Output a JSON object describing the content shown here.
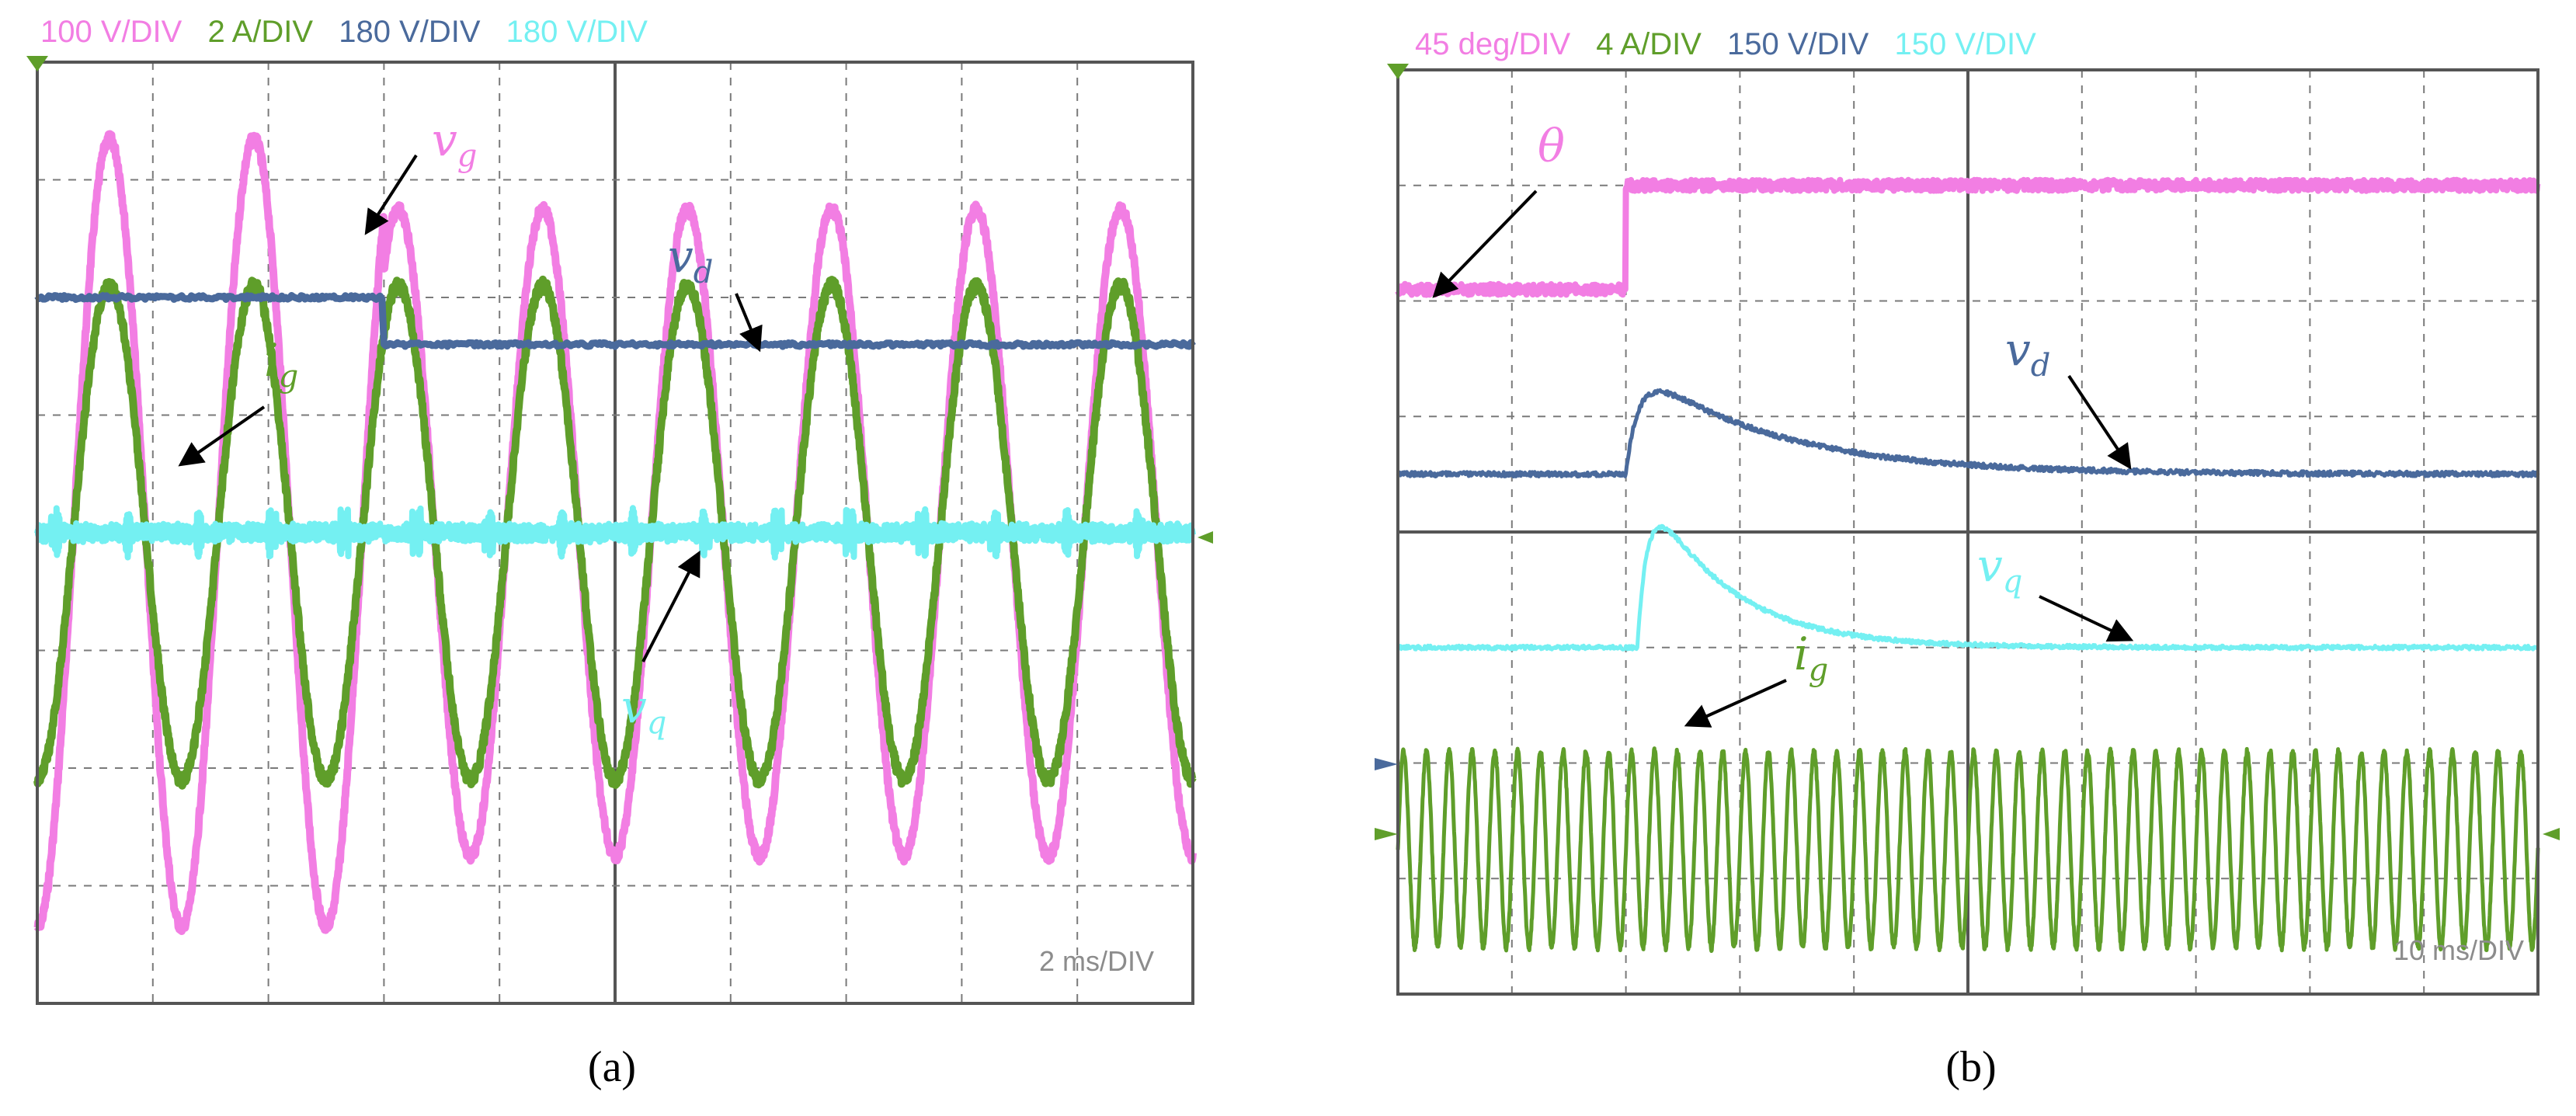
{
  "colors": {
    "pink": "#f27ee3",
    "green": "#5f9e2a",
    "blue": "#4a6a9c",
    "cyan": "#74f0f2",
    "grid": "#7a7a7a",
    "frame": "#555555",
    "timebase": "#8c8c8c"
  },
  "panels": {
    "a": {
      "label": "(a)",
      "scales": [
        "100 V/DIV",
        "2 A/DIV",
        "180 V/DIV",
        "180 V/DIV"
      ],
      "timebase": "2 ms/DIV"
    },
    "b": {
      "label": "(b)",
      "scales": [
        "45 deg/DIV",
        "4 A/DIV",
        "150 V/DIV",
        "150 V/DIV"
      ],
      "timebase": "10 ms/DIV"
    }
  },
  "chart_data": [
    {
      "type": "line",
      "panel": "(a)",
      "x_unit_per_div": "2 ms",
      "xlim": [
        0,
        20
      ],
      "grid": true,
      "series": [
        {
          "name": "v_g",
          "label": "v",
          "sub": "g",
          "scale": "100 V/DIV",
          "color": "#f27ee3",
          "kind": "sine",
          "cycles": 8,
          "amplitude_before_div": 3.35,
          "amplitude_after_div": 2.75,
          "step_ms": 6
        },
        {
          "name": "i_g",
          "label": "i",
          "sub": "g",
          "scale": "2 A/DIV",
          "color": "#5f9e2a",
          "kind": "sine",
          "cycles": 8,
          "amplitude_div": 2.1
        },
        {
          "name": "v_d",
          "label": "v",
          "sub": "d",
          "scale": "180 V/DIV",
          "color": "#4a6a9c",
          "kind": "step",
          "level_before_div": 2.0,
          "level_after_div": 1.6,
          "step_ms": 6
        },
        {
          "name": "v_q",
          "label": "v",
          "sub": "q",
          "scale": "180 V/DIV",
          "color": "#74f0f2",
          "kind": "flat",
          "level_div": 0.0
        }
      ]
    },
    {
      "type": "line",
      "panel": "(b)",
      "x_unit_per_div": "10 ms",
      "xlim": [
        0,
        100
      ],
      "grid": true,
      "series": [
        {
          "name": "theta",
          "label": "θ",
          "scale": "45 deg/DIV",
          "color": "#f27ee3",
          "kind": "step",
          "level_before_div": 2.1,
          "level_after_div": 3.0,
          "step_ms": 20
        },
        {
          "name": "v_d",
          "label": "v",
          "sub": "d",
          "scale": "150 V/DIV",
          "color": "#4a6a9c",
          "kind": "transient",
          "base_div": 0.5,
          "peak_div": 1.5,
          "step_ms": 20
        },
        {
          "name": "v_q",
          "label": "v",
          "sub": "q",
          "scale": "150 V/DIV",
          "color": "#74f0f2",
          "kind": "transient",
          "base_div": -1.0,
          "peak_div": 0.6,
          "step_ms": 21
        },
        {
          "name": "i_g",
          "label": "i",
          "sub": "g",
          "scale": "4 A/DIV",
          "color": "#5f9e2a",
          "kind": "sine",
          "cycles": 50,
          "amplitude_div": 0.85
        }
      ]
    }
  ]
}
